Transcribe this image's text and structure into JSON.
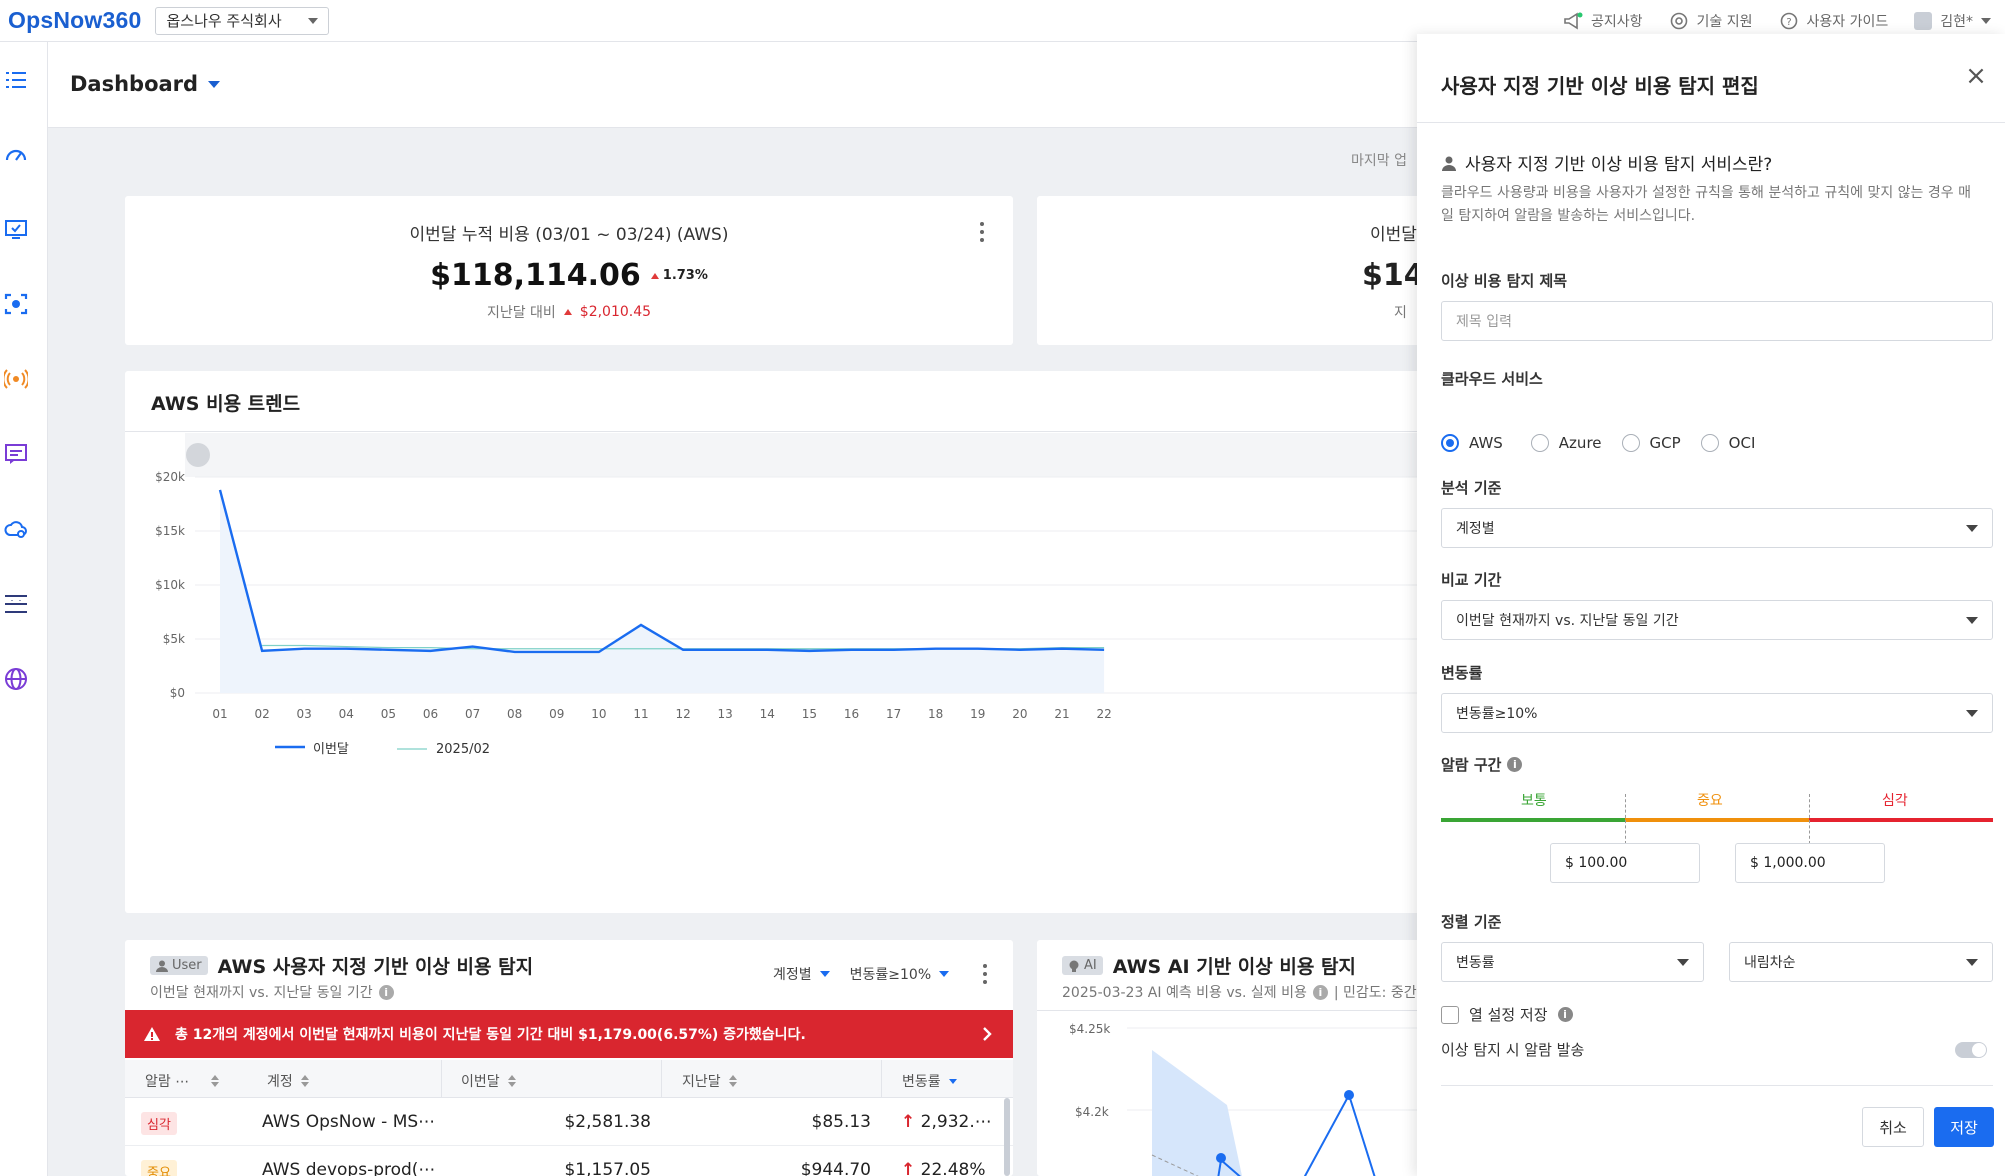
{
  "app": {
    "logo": "OpsNow360",
    "org_select": "옵스나우 주식회사",
    "top_links": {
      "notice": "공지사항",
      "support": "기술 지원",
      "guide": "사용자 가이드",
      "user": "김현*"
    }
  },
  "page": {
    "title": "Dashboard",
    "last_updated_prefix": "마지막 업"
  },
  "kpi_cards": [
    {
      "title": "이번달 누적 비용 (03/01 ~ 03/24) (AWS)",
      "value": "$118,114.06",
      "change_pct": "1.73%",
      "compare_label": "지난달 대비",
      "compare_value": "$2,010.45"
    },
    {
      "title_partial": "이번달",
      "value_partial": "$14",
      "compare_partial": "지"
    }
  ],
  "trend_card": {
    "title": "AWS 비용 트렌드"
  },
  "chart_data": {
    "type": "line",
    "x": [
      "01",
      "02",
      "03",
      "04",
      "05",
      "06",
      "07",
      "08",
      "09",
      "10",
      "11",
      "12",
      "13",
      "14",
      "15",
      "16",
      "17",
      "18",
      "19",
      "20",
      "21",
      "22"
    ],
    "ylim": [
      0,
      20000
    ],
    "y_ticks": [
      "$0",
      "$5k",
      "$10k",
      "$15k",
      "$20k"
    ],
    "grid": true,
    "legend_position": "bottom-left",
    "series": [
      {
        "name": "이번달",
        "color": "#1a6cf0",
        "values": [
          18800,
          3900,
          4100,
          4100,
          4000,
          3900,
          4300,
          3800,
          3800,
          3800,
          6300,
          4000,
          4000,
          4000,
          3900,
          4000,
          4000,
          4100,
          4100,
          4000,
          4100,
          4000
        ]
      },
      {
        "name": "2025/02",
        "color": "#7fd1c8",
        "values": [
          null,
          4400,
          4400,
          4300,
          4200,
          4200,
          4100,
          4100,
          4100,
          4100,
          4100,
          4100,
          4100,
          4100,
          4100,
          4100,
          4100,
          4100,
          4100,
          4100,
          4200,
          4200
        ]
      }
    ]
  },
  "user_anomaly_card": {
    "pill": "User",
    "title": "AWS 사용자 지정 기반 이상 비용 탐지",
    "subtitle": "이번달 현재까지 vs. 지난달 동일 기간",
    "filter_group": "계정별",
    "filter_rate": "변동률≥10%",
    "alert": "총 12개의 계정에서 이번달 현재까지 비용이 지난달 동일 기간 대비 $1,179.00(6.57%) 증가했습니다.",
    "columns": [
      "알람 ⋯",
      "계정",
      "이번달",
      "지난달",
      "변동률"
    ],
    "rows": [
      {
        "severity": "심각",
        "account": "AWS OpsNow - MS⋯",
        "this_month": "$2,581.38",
        "last_month": "$85.13",
        "rate": "2,932.⋯"
      },
      {
        "severity": "중요",
        "account": "AWS devops-prod(⋯",
        "this_month": "$1,157.05",
        "last_month": "$944.70",
        "rate": "22.48%"
      }
    ]
  },
  "ai_anomaly_card": {
    "pill": "AI",
    "title": "AWS AI 기반 이상 비용 탐지",
    "subtitle": "2025-03-23 AI 예측 비용 vs. 실제 비용",
    "subtitle_tail": "| 민감도: 중간",
    "y_ticks": [
      "$4.25k",
      "$4.2k"
    ]
  },
  "drawer": {
    "title": "사용자 지정 기반 이상 비용 탐지 편집",
    "info_title": "사용자 지정 기반 이상 비용 탐지 서비스란?",
    "info_desc": "클라우드 사용량과 비용을 사용자가 설정한 규칙을 통해 분석하고 규칙에 맞지 않는 경우 매일 탐지하여 알람을 발송하는 서비스입니다.",
    "title_label": "이상 비용 탐지 제목",
    "title_placeholder": "제목 입력",
    "cloud_label": "클라우드 서비스",
    "cloud_options": [
      "AWS",
      "Azure",
      "GCP",
      "OCI"
    ],
    "cloud_selected": "AWS",
    "basis_label": "분석 기준",
    "basis_value": "계정별",
    "period_label": "비교 기간",
    "period_value": "이번달 현재까지 vs. 지난달 동일 기간",
    "rate_label": "변동률",
    "rate_value": "변동률≥10%",
    "alarm_label": "알람 구간",
    "zones": [
      "보통",
      "중요",
      "심각"
    ],
    "zone_colors": [
      "#3aa535",
      "#f0900c",
      "#e5232f"
    ],
    "threshold_low": "$ 100.00",
    "threshold_high": "$ 1,000.00",
    "sort_label": "정렬 기준",
    "sort_value": "변동률",
    "sort_order": "내림차순",
    "save_columns_label": "열 설정 저장",
    "notify_label": "이상 탐지 시 알람 발송",
    "cancel": "취소",
    "save": "저장"
  }
}
